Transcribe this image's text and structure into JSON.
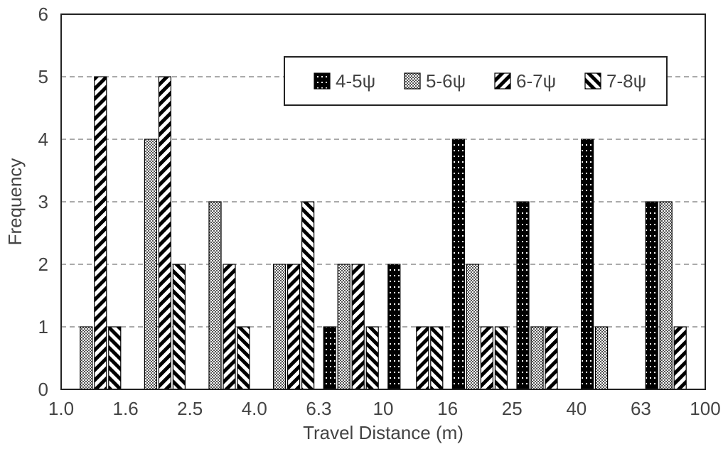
{
  "chart_data": {
    "type": "bar",
    "xlabel": "Travel Distance (m)",
    "ylabel": "Frequency",
    "ylim": [
      0,
      6
    ],
    "yticks": [
      "0",
      "1",
      "2",
      "3",
      "4",
      "5",
      "6"
    ],
    "xticks": [
      "1.0",
      "1.6",
      "2.5",
      "4.0",
      "6.3",
      "10",
      "16",
      "25",
      "40",
      "63",
      "100"
    ],
    "bins": [
      "1.0-1.6",
      "1.6-2.5",
      "2.5-4.0",
      "4.0-6.3",
      "6.3-10",
      "10-16",
      "16-25",
      "25-40",
      "40-63",
      "63-100"
    ],
    "grid": "horizontal dashed",
    "legend_position": "top-right",
    "series": [
      {
        "name": "4-5ψ",
        "pattern": "dotted-black",
        "values": [
          0,
          0,
          0,
          0,
          1,
          2,
          4,
          3,
          4,
          3
        ]
      },
      {
        "name": "5-6ψ",
        "pattern": "checker",
        "values": [
          1,
          4,
          3,
          2,
          2,
          0,
          2,
          1,
          1,
          3
        ]
      },
      {
        "name": "6-7ψ",
        "pattern": "diagonal-right",
        "values": [
          5,
          5,
          2,
          2,
          2,
          1,
          1,
          1,
          0,
          1
        ]
      },
      {
        "name": "7-8ψ",
        "pattern": "diagonal-left",
        "values": [
          1,
          2,
          1,
          3,
          1,
          1,
          1,
          0,
          0,
          0
        ]
      }
    ]
  }
}
